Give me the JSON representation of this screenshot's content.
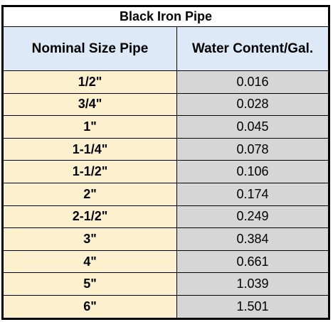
{
  "table": {
    "title": "Black Iron Pipe",
    "headers": {
      "size": "Nominal Size Pipe",
      "water": "Water Content/Gal."
    },
    "rows": [
      {
        "size": "1/2\"",
        "water": "0.016"
      },
      {
        "size": "3/4\"",
        "water": "0.028"
      },
      {
        "size": "1\"",
        "water": "0.045"
      },
      {
        "size": "1-1/4\"",
        "water": "0.078"
      },
      {
        "size": "1-1/2\"",
        "water": "0.106"
      },
      {
        "size": "2\"",
        "water": "0.174"
      },
      {
        "size": "2-1/2\"",
        "water": "0.249"
      },
      {
        "size": "3\"",
        "water": "0.384"
      },
      {
        "size": "4\"",
        "water": "0.661"
      },
      {
        "size": "5\"",
        "water": "1.039"
      },
      {
        "size": "6\"",
        "water": "1.501"
      }
    ]
  },
  "colors": {
    "header_bg": "#dde9f7",
    "size_bg": "#fdf0cf",
    "water_bg": "#d6d6d6",
    "border": "#000000"
  }
}
